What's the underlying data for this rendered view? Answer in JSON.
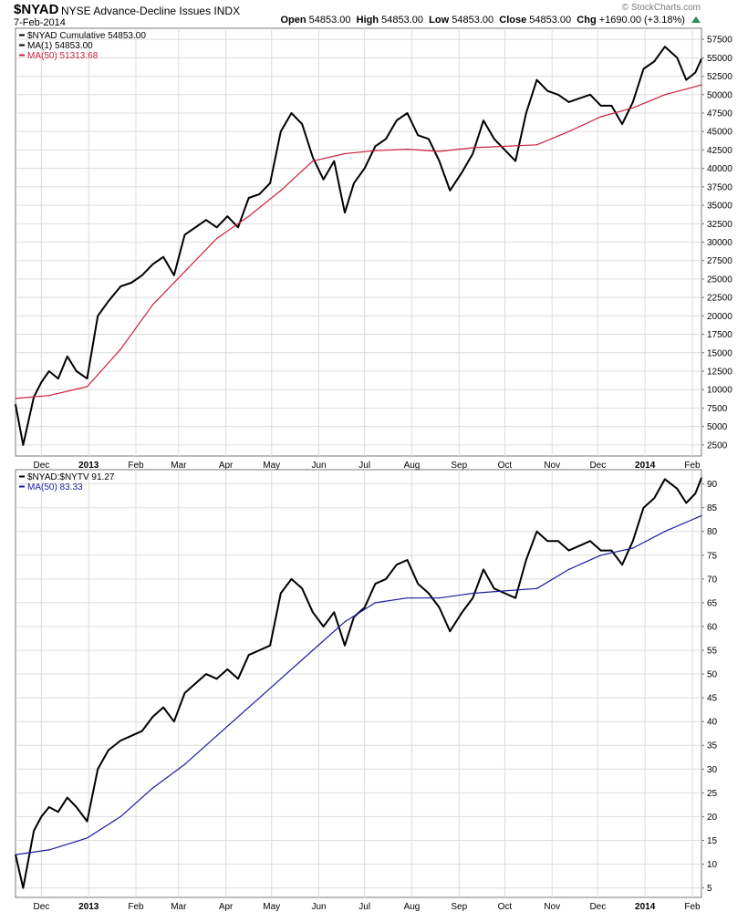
{
  "header": {
    "symbol": "$NYAD",
    "name": "NYSE Advance-Decline Issues INDX",
    "date": "7-Feb-2014",
    "open_label": "Open",
    "open": "54853.00",
    "high_label": "High",
    "high": "54853.00",
    "low_label": "Low",
    "low": "54853.00",
    "close_label": "Close",
    "close": "54853.00",
    "chg_label": "Chg",
    "chg": "+1690.00 (+3.18%)",
    "credit": "© StockCharts.com"
  },
  "colors": {
    "price": "#000000",
    "ma_top": "#cc1f3c",
    "ma_bottom": "#1c1c9e",
    "grid": "#dcdcdc"
  },
  "chart_data": [
    {
      "type": "line",
      "title": "$NYAD Cumulative 54853.00",
      "legend": [
        {
          "label": "$NYAD Cumulative 54853.00",
          "color": "#000000"
        },
        {
          "label": "MA(1) 54853.00",
          "color": "#000000"
        },
        {
          "label": "MA(50) 51313.68",
          "color": "#cc1f3c"
        }
      ],
      "x_ticks": [
        "Dec",
        "2013",
        "Feb",
        "Mar",
        "Apr",
        "May",
        "Jun",
        "Jul",
        "Aug",
        "Sep",
        "Oct",
        "Nov",
        "Dec",
        "2014",
        "Feb"
      ],
      "y_ticks": [
        2500,
        5000,
        7500,
        10000,
        12500,
        15000,
        17500,
        20000,
        22500,
        25000,
        27500,
        30000,
        32500,
        35000,
        37500,
        40000,
        42500,
        45000,
        47500,
        50000,
        52500,
        55000,
        57500
      ],
      "ylim": [
        1000,
        59000
      ],
      "grid": true,
      "legend_position": "top-left",
      "series": [
        {
          "name": "MA(1)",
          "x": [
            "2012-11-14",
            "2012-11-19",
            "2012-11-26",
            "2012-12-01",
            "2012-12-06",
            "2012-12-12",
            "2012-12-18",
            "2012-12-24",
            "2012-12-31",
            "2013-01-07",
            "2013-01-14",
            "2013-01-22",
            "2013-01-29",
            "2013-02-05",
            "2013-02-12",
            "2013-02-19",
            "2013-02-26",
            "2013-03-05",
            "2013-03-12",
            "2013-03-19",
            "2013-03-26",
            "2013-04-02",
            "2013-04-09",
            "2013-04-16",
            "2013-04-23",
            "2013-04-30",
            "2013-05-07",
            "2013-05-14",
            "2013-05-21",
            "2013-05-28",
            "2013-06-04",
            "2013-06-11",
            "2013-06-18",
            "2013-06-24",
            "2013-07-01",
            "2013-07-08",
            "2013-07-15",
            "2013-07-22",
            "2013-07-29",
            "2013-08-05",
            "2013-08-12",
            "2013-08-19",
            "2013-08-26",
            "2013-09-03",
            "2013-09-10",
            "2013-09-17",
            "2013-09-24",
            "2013-10-01",
            "2013-10-08",
            "2013-10-15",
            "2013-10-22",
            "2013-10-29",
            "2013-11-05",
            "2013-11-12",
            "2013-11-19",
            "2013-11-26",
            "2013-12-03",
            "2013-12-10",
            "2013-12-17",
            "2013-12-24",
            "2013-12-31",
            "2014-01-07",
            "2014-01-14",
            "2014-01-22",
            "2014-01-28",
            "2014-02-03",
            "2014-02-07"
          ],
          "values": [
            8000,
            2500,
            9000,
            11000,
            12500,
            11500,
            14500,
            12500,
            11500,
            20000,
            22000,
            24000,
            24500,
            25500,
            27000,
            28000,
            25500,
            31000,
            32000,
            33000,
            32000,
            33500,
            32000,
            36000,
            36500,
            38000,
            45000,
            47500,
            46000,
            41500,
            38500,
            41000,
            34000,
            38000,
            40000,
            43000,
            44000,
            46500,
            47500,
            44500,
            44000,
            41000,
            37000,
            39500,
            42000,
            46500,
            44000,
            42500,
            41000,
            47500,
            52000,
            50500,
            50000,
            49000,
            49500,
            50000,
            48500,
            48500,
            46000,
            49000,
            53500,
            54500,
            56500,
            55000,
            52000,
            53000,
            54853
          ]
        },
        {
          "name": "MA(50)",
          "x": [
            "2012-11-14",
            "2012-12-06",
            "2012-12-31",
            "2013-01-22",
            "2013-02-12",
            "2013-03-05",
            "2013-03-26",
            "2013-04-16",
            "2013-05-07",
            "2013-05-28",
            "2013-06-18",
            "2013-07-08",
            "2013-07-29",
            "2013-08-19",
            "2013-09-10",
            "2013-10-01",
            "2013-10-22",
            "2013-11-12",
            "2013-12-03",
            "2013-12-24",
            "2014-01-14",
            "2014-02-07"
          ],
          "values": [
            8800,
            9200,
            10400,
            15500,
            21500,
            26000,
            30500,
            33500,
            37000,
            41000,
            42000,
            42400,
            42600,
            42300,
            42800,
            43000,
            43200,
            45000,
            47000,
            48200,
            50000,
            51313.68
          ]
        }
      ]
    },
    {
      "type": "line",
      "title": "$NYAD:$NYTV 91.27",
      "legend": [
        {
          "label": "$NYAD:$NYTV 91.27",
          "color": "#000000"
        },
        {
          "label": "MA(50) 83.33",
          "color": "#1c1c9e"
        }
      ],
      "x_ticks": [
        "Dec",
        "2013",
        "Feb",
        "Mar",
        "Apr",
        "May",
        "Jun",
        "Jul",
        "Aug",
        "Sep",
        "Oct",
        "Nov",
        "Dec",
        "2014",
        "Feb"
      ],
      "y_ticks": [
        5,
        10,
        15,
        20,
        25,
        30,
        35,
        40,
        45,
        50,
        55,
        60,
        65,
        70,
        75,
        80,
        85,
        90
      ],
      "ylim": [
        3,
        93
      ],
      "grid": true,
      "legend_position": "top-left",
      "series": [
        {
          "name": "$NYAD:$NYTV",
          "x": [
            "2012-11-14",
            "2012-11-19",
            "2012-11-26",
            "2012-12-01",
            "2012-12-06",
            "2012-12-12",
            "2012-12-18",
            "2012-12-24",
            "2012-12-31",
            "2013-01-07",
            "2013-01-14",
            "2013-01-22",
            "2013-01-29",
            "2013-02-05",
            "2013-02-12",
            "2013-02-19",
            "2013-02-26",
            "2013-03-05",
            "2013-03-12",
            "2013-03-19",
            "2013-03-26",
            "2013-04-02",
            "2013-04-09",
            "2013-04-16",
            "2013-04-23",
            "2013-04-30",
            "2013-05-07",
            "2013-05-14",
            "2013-05-21",
            "2013-05-28",
            "2013-06-04",
            "2013-06-11",
            "2013-06-18",
            "2013-06-24",
            "2013-07-01",
            "2013-07-08",
            "2013-07-15",
            "2013-07-22",
            "2013-07-29",
            "2013-08-05",
            "2013-08-12",
            "2013-08-19",
            "2013-08-26",
            "2013-09-03",
            "2013-09-10",
            "2013-09-17",
            "2013-09-24",
            "2013-10-01",
            "2013-10-08",
            "2013-10-15",
            "2013-10-22",
            "2013-10-29",
            "2013-11-05",
            "2013-11-12",
            "2013-11-19",
            "2013-11-26",
            "2013-12-03",
            "2013-12-10",
            "2013-12-17",
            "2013-12-24",
            "2013-12-31",
            "2014-01-07",
            "2014-01-14",
            "2014-01-22",
            "2014-01-28",
            "2014-02-03",
            "2014-02-07"
          ],
          "values": [
            12,
            5,
            17,
            20,
            22,
            21,
            24,
            22,
            19,
            30,
            34,
            36,
            37,
            38,
            41,
            43,
            40,
            46,
            48,
            50,
            49,
            51,
            49,
            54,
            55,
            56,
            67,
            70,
            68,
            63,
            60,
            63,
            56,
            62,
            64,
            69,
            70,
            73,
            74,
            69,
            67,
            64,
            59,
            63,
            66,
            72,
            68,
            67,
            66,
            74,
            80,
            78,
            78,
            76,
            77,
            78,
            76,
            76,
            73,
            78,
            85,
            87,
            91,
            89,
            86,
            88,
            91.27
          ]
        },
        {
          "name": "MA(50)",
          "x": [
            "2012-11-14",
            "2012-12-06",
            "2012-12-31",
            "2013-01-22",
            "2013-02-12",
            "2013-03-05",
            "2013-03-26",
            "2013-04-16",
            "2013-05-07",
            "2013-05-28",
            "2013-06-18",
            "2013-07-08",
            "2013-07-29",
            "2013-08-19",
            "2013-09-10",
            "2013-10-01",
            "2013-10-22",
            "2013-11-12",
            "2013-12-03",
            "2013-12-24",
            "2014-01-14",
            "2014-02-07"
          ],
          "values": [
            12,
            13,
            15.5,
            20,
            26,
            31,
            37,
            43,
            49,
            55,
            61,
            65,
            66,
            66,
            67,
            67.5,
            68,
            72,
            75,
            76.5,
            80,
            83.33
          ]
        }
      ]
    }
  ]
}
